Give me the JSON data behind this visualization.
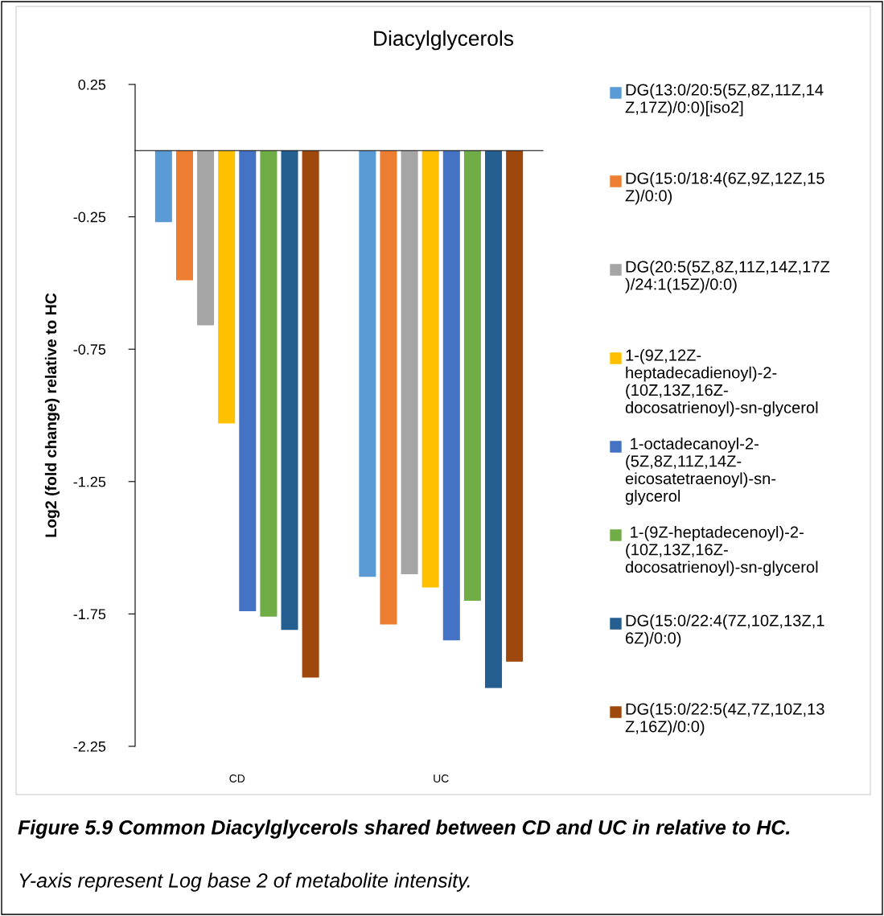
{
  "chart_data": {
    "type": "bar",
    "title": "Diacylglycerols",
    "ylabel": "Log2 (fold change) relative to HC",
    "categories": [
      "CD",
      "UC"
    ],
    "series": [
      {
        "name": "DG(13:0/20:5(5Z,8Z,11Z,14\nZ,17Z)/0:0)[iso2]",
        "color": "#5b9bd5",
        "values": [
          -0.27,
          -1.61
        ]
      },
      {
        "name": "DG(15:0/18:4(6Z,9Z,12Z,15\nZ)/0:0)",
        "color": "#ed7d31",
        "values": [
          -0.49,
          -1.79
        ]
      },
      {
        "name": "DG(20:5(5Z,8Z,11Z,14Z,17Z\n)/24:1(15Z)/0:0)",
        "color": "#a5a5a5",
        "values": [
          -0.66,
          -1.6
        ]
      },
      {
        "name": "1-(9Z,12Z-\nheptadecadienoyl)-2-\n(10Z,13Z,16Z-\ndocosatrienoyl)-sn-glycerol",
        "color": "#ffc000",
        "values": [
          -1.03,
          -1.65
        ]
      },
      {
        "name": " 1-octadecanoyl-2-\n(5Z,8Z,11Z,14Z-\neicosatetraenoyl)-sn-\nglycerol",
        "color": "#4472c4",
        "values": [
          -1.74,
          -1.85
        ]
      },
      {
        "name": " 1-(9Z-heptadecenoyl)-2-\n(10Z,13Z,16Z-\ndocosatrienoyl)-sn-glycerol",
        "color": "#70ad47",
        "values": [
          -1.76,
          -1.7
        ]
      },
      {
        "name": "DG(15:0/22:4(7Z,10Z,13Z,1\n6Z)/0:0)",
        "color": "#255e91",
        "values": [
          -1.81,
          -2.03
        ]
      },
      {
        "name": "DG(15:0/22:5(4Z,7Z,10Z,13\nZ,16Z)/0:0)",
        "color": "#9e480e",
        "values": [
          -1.99,
          -1.93
        ]
      }
    ],
    "ylim": [
      -2.25,
      0.25
    ],
    "yticks": [
      0.25,
      -0.25,
      -0.75,
      -1.25,
      -1.75,
      -2.25
    ],
    "grid": false,
    "legend": "right",
    "annotations": [
      "Figure 5.9 Common Diacylglycerols shared between CD and UC in relative to HC.",
      "Y-axis represent Log base 2 of metabolite intensity."
    ]
  }
}
